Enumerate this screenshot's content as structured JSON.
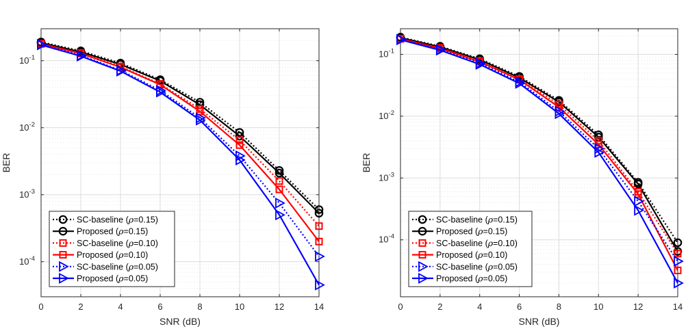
{
  "chart_data": [
    {
      "type": "line",
      "xlabel": "SNR (dB)",
      "ylabel": "BER",
      "xlim": [
        0,
        14
      ],
      "ylim": [
        3e-05,
        0.3
      ],
      "yscale": "log",
      "grid": true,
      "legend_position": "bottom-left",
      "x": [
        0,
        2,
        4,
        6,
        8,
        10,
        12,
        14
      ],
      "x_ticks": [
        0,
        2,
        4,
        6,
        8,
        10,
        12,
        14
      ],
      "y_ticks": [
        {
          "base": "10",
          "exp": "-4",
          "value": 0.0001
        },
        {
          "base": "10",
          "exp": "-3",
          "value": 0.001
        },
        {
          "base": "10",
          "exp": "-2",
          "value": 0.01
        },
        {
          "base": "10",
          "exp": "-1",
          "value": 0.1
        }
      ],
      "series": [
        {
          "label_prefix": "SC-baseline (",
          "greek": "ρ",
          "label_suffix": "=0.15)",
          "color": "#000000",
          "dash": "dotted",
          "marker": "circle",
          "values": [
            0.19,
            0.14,
            0.092,
            0.052,
            0.024,
            0.0085,
            0.0023,
            0.0006
          ]
        },
        {
          "label_prefix": "Proposed (",
          "greek": "ρ",
          "label_suffix": "=0.15)",
          "color": "#000000",
          "dash": "solid",
          "marker": "circle",
          "values": [
            0.185,
            0.135,
            0.088,
            0.05,
            0.022,
            0.0075,
            0.0021,
            0.00053
          ]
        },
        {
          "label_prefix": "SC-baseline (",
          "greek": "ρ",
          "label_suffix": "=0.10)",
          "color": "#ff0000",
          "dash": "dotted",
          "marker": "square",
          "values": [
            0.18,
            0.13,
            0.082,
            0.045,
            0.019,
            0.0065,
            0.0016,
            0.00034
          ]
        },
        {
          "label_prefix": "Proposed (",
          "greek": "ρ",
          "label_suffix": "=0.10)",
          "color": "#ff0000",
          "dash": "solid",
          "marker": "square",
          "values": [
            0.178,
            0.128,
            0.08,
            0.044,
            0.0175,
            0.0055,
            0.0012,
            0.0002
          ]
        },
        {
          "label_prefix": "SC-baseline (",
          "greek": "ρ",
          "label_suffix": "=0.05)",
          "color": "#0000ff",
          "dash": "dotted",
          "marker": "triangle-right",
          "values": [
            0.175,
            0.12,
            0.072,
            0.036,
            0.014,
            0.0038,
            0.00075,
            0.00012
          ]
        },
        {
          "label_prefix": "Proposed (",
          "greek": "ρ",
          "label_suffix": "=0.05)",
          "color": "#0000ff",
          "dash": "solid",
          "marker": "triangle-right",
          "values": [
            0.172,
            0.117,
            0.07,
            0.034,
            0.013,
            0.0033,
            0.0005,
            4.5e-05
          ]
        }
      ]
    },
    {
      "type": "line",
      "xlabel": "SNR (dB)",
      "ylabel": "BER",
      "xlim": [
        0,
        14
      ],
      "ylim": [
        1.2e-05,
        0.26
      ],
      "yscale": "log",
      "grid": true,
      "legend_position": "bottom-left",
      "x": [
        0,
        2,
        4,
        6,
        8,
        10,
        12,
        14
      ],
      "x_ticks": [
        0,
        2,
        4,
        6,
        8,
        10,
        12,
        14
      ],
      "y_ticks": [
        {
          "base": "10",
          "exp": "-4",
          "value": 0.0001
        },
        {
          "base": "10",
          "exp": "-3",
          "value": 0.001
        },
        {
          "base": "10",
          "exp": "-2",
          "value": 0.01
        },
        {
          "base": "10",
          "exp": "-1",
          "value": 0.1
        }
      ],
      "series": [
        {
          "label_prefix": "SC-baseline (",
          "greek": "ρ",
          "label_suffix": "=0.15)",
          "color": "#000000",
          "dash": "dotted",
          "marker": "circle",
          "values": [
            0.19,
            0.135,
            0.085,
            0.044,
            0.018,
            0.005,
            0.00085,
            9e-05
          ]
        },
        {
          "label_prefix": "Proposed (",
          "greek": "ρ",
          "label_suffix": "=0.15)",
          "color": "#000000",
          "dash": "solid",
          "marker": "circle",
          "values": [
            0.185,
            0.132,
            0.082,
            0.042,
            0.017,
            0.0046,
            0.0008,
            6.5e-05
          ]
        },
        {
          "label_prefix": "SC-baseline (",
          "greek": "ρ",
          "label_suffix": "=0.10)",
          "color": "#ff0000",
          "dash": "dotted",
          "marker": "square",
          "values": [
            0.18,
            0.128,
            0.078,
            0.04,
            0.0155,
            0.004,
            0.0006,
            6e-05
          ]
        },
        {
          "label_prefix": "Proposed (",
          "greek": "ρ",
          "label_suffix": "=0.10)",
          "color": "#ff0000",
          "dash": "solid",
          "marker": "square",
          "values": [
            0.178,
            0.125,
            0.076,
            0.039,
            0.014,
            0.0035,
            0.00055,
            3.2e-05
          ]
        },
        {
          "label_prefix": "SC-baseline (",
          "greek": "ρ",
          "label_suffix": "=0.05)",
          "color": "#0000ff",
          "dash": "dotted",
          "marker": "triangle-right",
          "values": [
            0.175,
            0.12,
            0.072,
            0.036,
            0.012,
            0.003,
            0.00042,
            4.5e-05
          ]
        },
        {
          "label_prefix": "Proposed (",
          "greek": "ρ",
          "label_suffix": "=0.05)",
          "color": "#0000ff",
          "dash": "solid",
          "marker": "triangle-right",
          "values": [
            0.172,
            0.117,
            0.069,
            0.034,
            0.011,
            0.0026,
            0.0003,
            2e-05
          ]
        }
      ]
    }
  ]
}
